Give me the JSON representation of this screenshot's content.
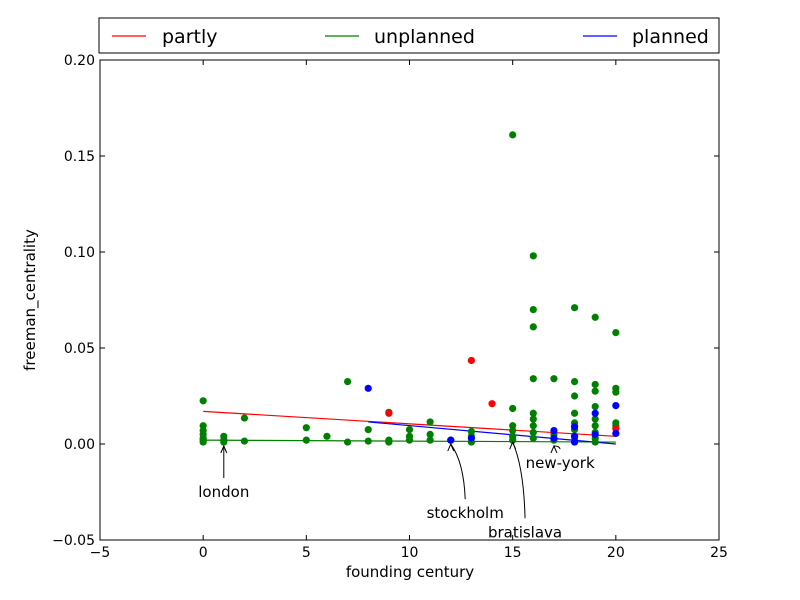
{
  "chart_data": {
    "type": "scatter",
    "title": "",
    "xlabel": "founding century",
    "ylabel": "freeman_centrality",
    "xlim": [
      -5,
      25
    ],
    "ylim": [
      -0.05,
      0.2
    ],
    "xticks": [
      -5,
      0,
      5,
      10,
      15,
      20,
      25
    ],
    "xtick_labels": [
      "−5",
      "0",
      "5",
      "10",
      "15",
      "20",
      "25"
    ],
    "yticks": [
      -0.05,
      0.0,
      0.05,
      0.1,
      0.15,
      0.2
    ],
    "ytick_labels": [
      "−0.05",
      "0.00",
      "0.05",
      "0.10",
      "0.15",
      "0.20"
    ],
    "grid": false,
    "legend": {
      "position": "top",
      "entries": [
        "partly",
        "unplanned",
        "planned"
      ]
    },
    "series": [
      {
        "name": "partly",
        "color": "#ff0000",
        "points": [
          [
            9,
            0.016
          ],
          [
            13,
            0.0435
          ],
          [
            14,
            0.021
          ],
          [
            20,
            0.008
          ]
        ],
        "trend": [
          [
            0,
            0.017
          ],
          [
            20,
            0.004
          ]
        ]
      },
      {
        "name": "unplanned",
        "color": "#008000",
        "points": [
          [
            0,
            0.0225
          ],
          [
            0,
            0.0095
          ],
          [
            0,
            0.007
          ],
          [
            0,
            0.005
          ],
          [
            0,
            0.003
          ],
          [
            0,
            0.002
          ],
          [
            0,
            0.001
          ],
          [
            1,
            0.004
          ],
          [
            1,
            0.002
          ],
          [
            1,
            0.001
          ],
          [
            2,
            0.0135
          ],
          [
            2,
            0.0015
          ],
          [
            5,
            0.0085
          ],
          [
            5,
            0.002
          ],
          [
            6,
            0.004
          ],
          [
            7,
            0.0325
          ],
          [
            7,
            0.001
          ],
          [
            8,
            0.0075
          ],
          [
            8,
            0.0015
          ],
          [
            9,
            0.0165
          ],
          [
            9,
            0.002
          ],
          [
            9,
            0.001
          ],
          [
            10,
            0.0075
          ],
          [
            10,
            0.004
          ],
          [
            10,
            0.002
          ],
          [
            11,
            0.0115
          ],
          [
            11,
            0.005
          ],
          [
            11,
            0.002
          ],
          [
            12,
            0.002
          ],
          [
            13,
            0.0065
          ],
          [
            13,
            0.004
          ],
          [
            13,
            0.001
          ],
          [
            15,
            0.161
          ],
          [
            15,
            0.0185
          ],
          [
            15,
            0.0095
          ],
          [
            15,
            0.007
          ],
          [
            15,
            0.004
          ],
          [
            15,
            0.002
          ],
          [
            16,
            0.098
          ],
          [
            16,
            0.07
          ],
          [
            16,
            0.061
          ],
          [
            16,
            0.034
          ],
          [
            16,
            0.016
          ],
          [
            16,
            0.013
          ],
          [
            16,
            0.0095
          ],
          [
            16,
            0.006
          ],
          [
            16,
            0.003
          ],
          [
            17,
            0.034
          ],
          [
            17,
            0.005
          ],
          [
            17,
            0.002
          ],
          [
            18,
            0.071
          ],
          [
            18,
            0.0325
          ],
          [
            18,
            0.025
          ],
          [
            18,
            0.016
          ],
          [
            18,
            0.011
          ],
          [
            18,
            0.0075
          ],
          [
            18,
            0.004
          ],
          [
            18,
            0.002
          ],
          [
            19,
            0.066
          ],
          [
            19,
            0.031
          ],
          [
            19,
            0.0275
          ],
          [
            19,
            0.0195
          ],
          [
            19,
            0.013
          ],
          [
            19,
            0.0095
          ],
          [
            19,
            0.006
          ],
          [
            19,
            0.003
          ],
          [
            19,
            0.001
          ],
          [
            20,
            0.058
          ],
          [
            20,
            0.029
          ],
          [
            20,
            0.027
          ],
          [
            20,
            0.011
          ],
          [
            20,
            0.0095
          ]
        ],
        "trend": [
          [
            0,
            0.002
          ],
          [
            20,
            0.001
          ]
        ]
      },
      {
        "name": "planned",
        "color": "#0000ff",
        "points": [
          [
            8,
            0.029
          ],
          [
            12,
            0.002
          ],
          [
            13,
            0.003
          ],
          [
            17,
            0.007
          ],
          [
            17,
            0.003
          ],
          [
            18,
            0.009
          ],
          [
            18,
            0.004
          ],
          [
            18,
            0.001
          ],
          [
            19,
            0.016
          ],
          [
            19,
            0.005
          ],
          [
            20,
            0.02
          ],
          [
            20,
            0.0055
          ]
        ],
        "trend": [
          [
            8,
            0.0115
          ],
          [
            20,
            0.0
          ]
        ]
      }
    ],
    "annotations": [
      {
        "text": "london",
        "x": 1,
        "y": 0.0,
        "tx": 1,
        "ty": -0.025
      },
      {
        "text": "stockholm",
        "x": 12,
        "y": 0.001,
        "tx": 12.7,
        "ty": -0.036
      },
      {
        "text": "bratislava",
        "x": 15,
        "y": 0.002,
        "tx": 15.6,
        "ty": -0.046
      },
      {
        "text": "new-york",
        "x": 17,
        "y": 0.0,
        "tx": 17.3,
        "ty": -0.01
      }
    ]
  }
}
